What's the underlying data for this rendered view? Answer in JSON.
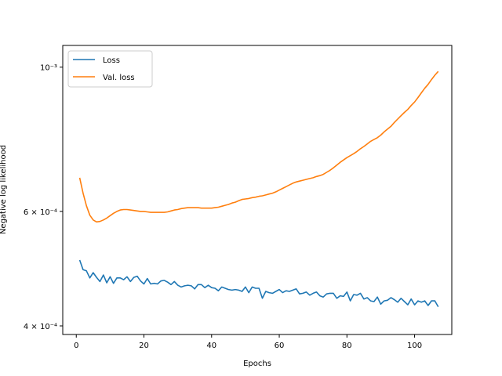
{
  "chart_data": {
    "type": "line",
    "title": "",
    "xlabel": "Epochs",
    "ylabel": "Negative log likelihood",
    "yscale": "log",
    "xlim": [
      -4,
      111
    ],
    "ylim": [
      0.000388,
      0.00108
    ],
    "grid": false,
    "legend_loc": "upper left",
    "x_ticks": [
      0,
      20,
      40,
      60,
      80,
      100
    ],
    "x_tick_labels": [
      "0",
      "20",
      "40",
      "60",
      "80",
      "100"
    ],
    "y_ticks": [
      0.0004,
      0.0006,
      0.001
    ],
    "y_tick_labels": [
      "4 × 10⁻⁴",
      "6 × 10⁻⁴",
      "10⁻³"
    ],
    "series": [
      {
        "name": "Loss",
        "color": "#1f77b4",
        "x": [
          1,
          2,
          3,
          4,
          5,
          6,
          7,
          8,
          9,
          10,
          11,
          12,
          13,
          14,
          15,
          16,
          17,
          18,
          19,
          20,
          21,
          22,
          23,
          24,
          25,
          26,
          27,
          28,
          29,
          30,
          31,
          32,
          33,
          34,
          35,
          36,
          37,
          38,
          39,
          40,
          41,
          42,
          43,
          44,
          45,
          46,
          47,
          48,
          49,
          50,
          51,
          52,
          53,
          54,
          55,
          56,
          57,
          58,
          59,
          60,
          61,
          62,
          63,
          64,
          65,
          66,
          67,
          68,
          69,
          70,
          71,
          72,
          73,
          74,
          75,
          76,
          77,
          78,
          79,
          80,
          81,
          82,
          83,
          84,
          85,
          86,
          87,
          88,
          89,
          90,
          91,
          92,
          93,
          94,
          95,
          96,
          97,
          98,
          99,
          100,
          101,
          102,
          103,
          104,
          105,
          106,
          107
        ],
        "values": [
          0.000505,
          0.000488,
          0.000486,
          0.000474,
          0.000483,
          0.000475,
          0.000468,
          0.000479,
          0.000466,
          0.000476,
          0.000465,
          0.000474,
          0.000474,
          0.000471,
          0.000476,
          0.000468,
          0.000475,
          0.000477,
          0.000469,
          0.000464,
          0.000473,
          0.000464,
          0.000465,
          0.000464,
          0.000469,
          0.00047,
          0.000467,
          0.000463,
          0.000468,
          0.000462,
          0.000459,
          0.000461,
          0.000462,
          0.000461,
          0.000456,
          0.000463,
          0.000463,
          0.000458,
          0.000462,
          0.000458,
          0.000457,
          0.000453,
          0.000459,
          0.000457,
          0.000455,
          0.000454,
          0.000455,
          0.000454,
          0.000452,
          0.000459,
          0.00045,
          0.000459,
          0.000457,
          0.000457,
          0.000441,
          0.000452,
          0.00045,
          0.000449,
          0.000452,
          0.000455,
          0.00045,
          0.000453,
          0.000452,
          0.000454,
          0.000456,
          0.000448,
          0.000449,
          0.000451,
          0.000446,
          0.000449,
          0.000451,
          0.000445,
          0.000443,
          0.000448,
          0.000449,
          0.000449,
          0.000441,
          0.000445,
          0.000444,
          0.000451,
          0.000437,
          0.000447,
          0.000446,
          0.000449,
          0.00044,
          0.000442,
          0.000437,
          0.000436,
          0.000443,
          0.000432,
          0.000437,
          0.000438,
          0.000442,
          0.000439,
          0.000435,
          0.000441,
          0.000436,
          0.000431,
          0.00044,
          0.000431,
          0.000437,
          0.000435,
          0.000437,
          0.00043,
          0.000437,
          0.000437,
          0.000428
        ]
      },
      {
        "name": "Val. loss",
        "color": "#ff7f0e",
        "x": [
          1,
          2,
          3,
          4,
          5,
          6,
          7,
          8,
          9,
          10,
          11,
          12,
          13,
          14,
          15,
          16,
          17,
          18,
          19,
          20,
          21,
          22,
          23,
          24,
          25,
          26,
          27,
          28,
          29,
          30,
          31,
          32,
          33,
          34,
          35,
          36,
          37,
          38,
          39,
          40,
          41,
          42,
          43,
          44,
          45,
          46,
          47,
          48,
          49,
          50,
          51,
          52,
          53,
          54,
          55,
          56,
          57,
          58,
          59,
          60,
          61,
          62,
          63,
          64,
          65,
          66,
          67,
          68,
          69,
          70,
          71,
          72,
          73,
          74,
          75,
          76,
          77,
          78,
          79,
          80,
          81,
          82,
          83,
          84,
          85,
          86,
          87,
          88,
          89,
          90,
          91,
          92,
          93,
          94,
          95,
          96,
          97,
          98,
          99,
          100,
          101,
          102,
          103,
          104,
          105,
          106,
          107
        ],
        "values": [
          0.000676,
          0.00064,
          0.000612,
          0.000592,
          0.000582,
          0.000578,
          0.000579,
          0.000582,
          0.000586,
          0.000591,
          0.000596,
          0.0006,
          0.000603,
          0.000604,
          0.000604,
          0.000603,
          0.000602,
          0.000601,
          0.0006,
          0.0006,
          0.000599,
          0.000598,
          0.000598,
          0.000598,
          0.000598,
          0.000598,
          0.000599,
          0.000601,
          0.000603,
          0.000604,
          0.000606,
          0.000607,
          0.000608,
          0.000608,
          0.000608,
          0.000608,
          0.000607,
          0.000607,
          0.000607,
          0.000607,
          0.000608,
          0.000609,
          0.000611,
          0.000613,
          0.000615,
          0.000618,
          0.00062,
          0.000623,
          0.000626,
          0.000627,
          0.000628,
          0.00063,
          0.000631,
          0.000633,
          0.000634,
          0.000636,
          0.000638,
          0.00064,
          0.000643,
          0.000647,
          0.000651,
          0.000655,
          0.000659,
          0.000663,
          0.000666,
          0.000668,
          0.00067,
          0.000672,
          0.000674,
          0.000676,
          0.000679,
          0.000681,
          0.000684,
          0.000689,
          0.000694,
          0.0007,
          0.000707,
          0.000714,
          0.00072,
          0.000726,
          0.000731,
          0.000736,
          0.000742,
          0.000749,
          0.000755,
          0.000762,
          0.000769,
          0.000774,
          0.000779,
          0.000786,
          0.000795,
          0.000803,
          0.000811,
          0.000822,
          0.000832,
          0.000842,
          0.000852,
          0.000861,
          0.000873,
          0.000884,
          0.000898,
          0.000913,
          0.000928,
          0.000941,
          0.000957,
          0.000972,
          0.000985
        ]
      }
    ]
  }
}
